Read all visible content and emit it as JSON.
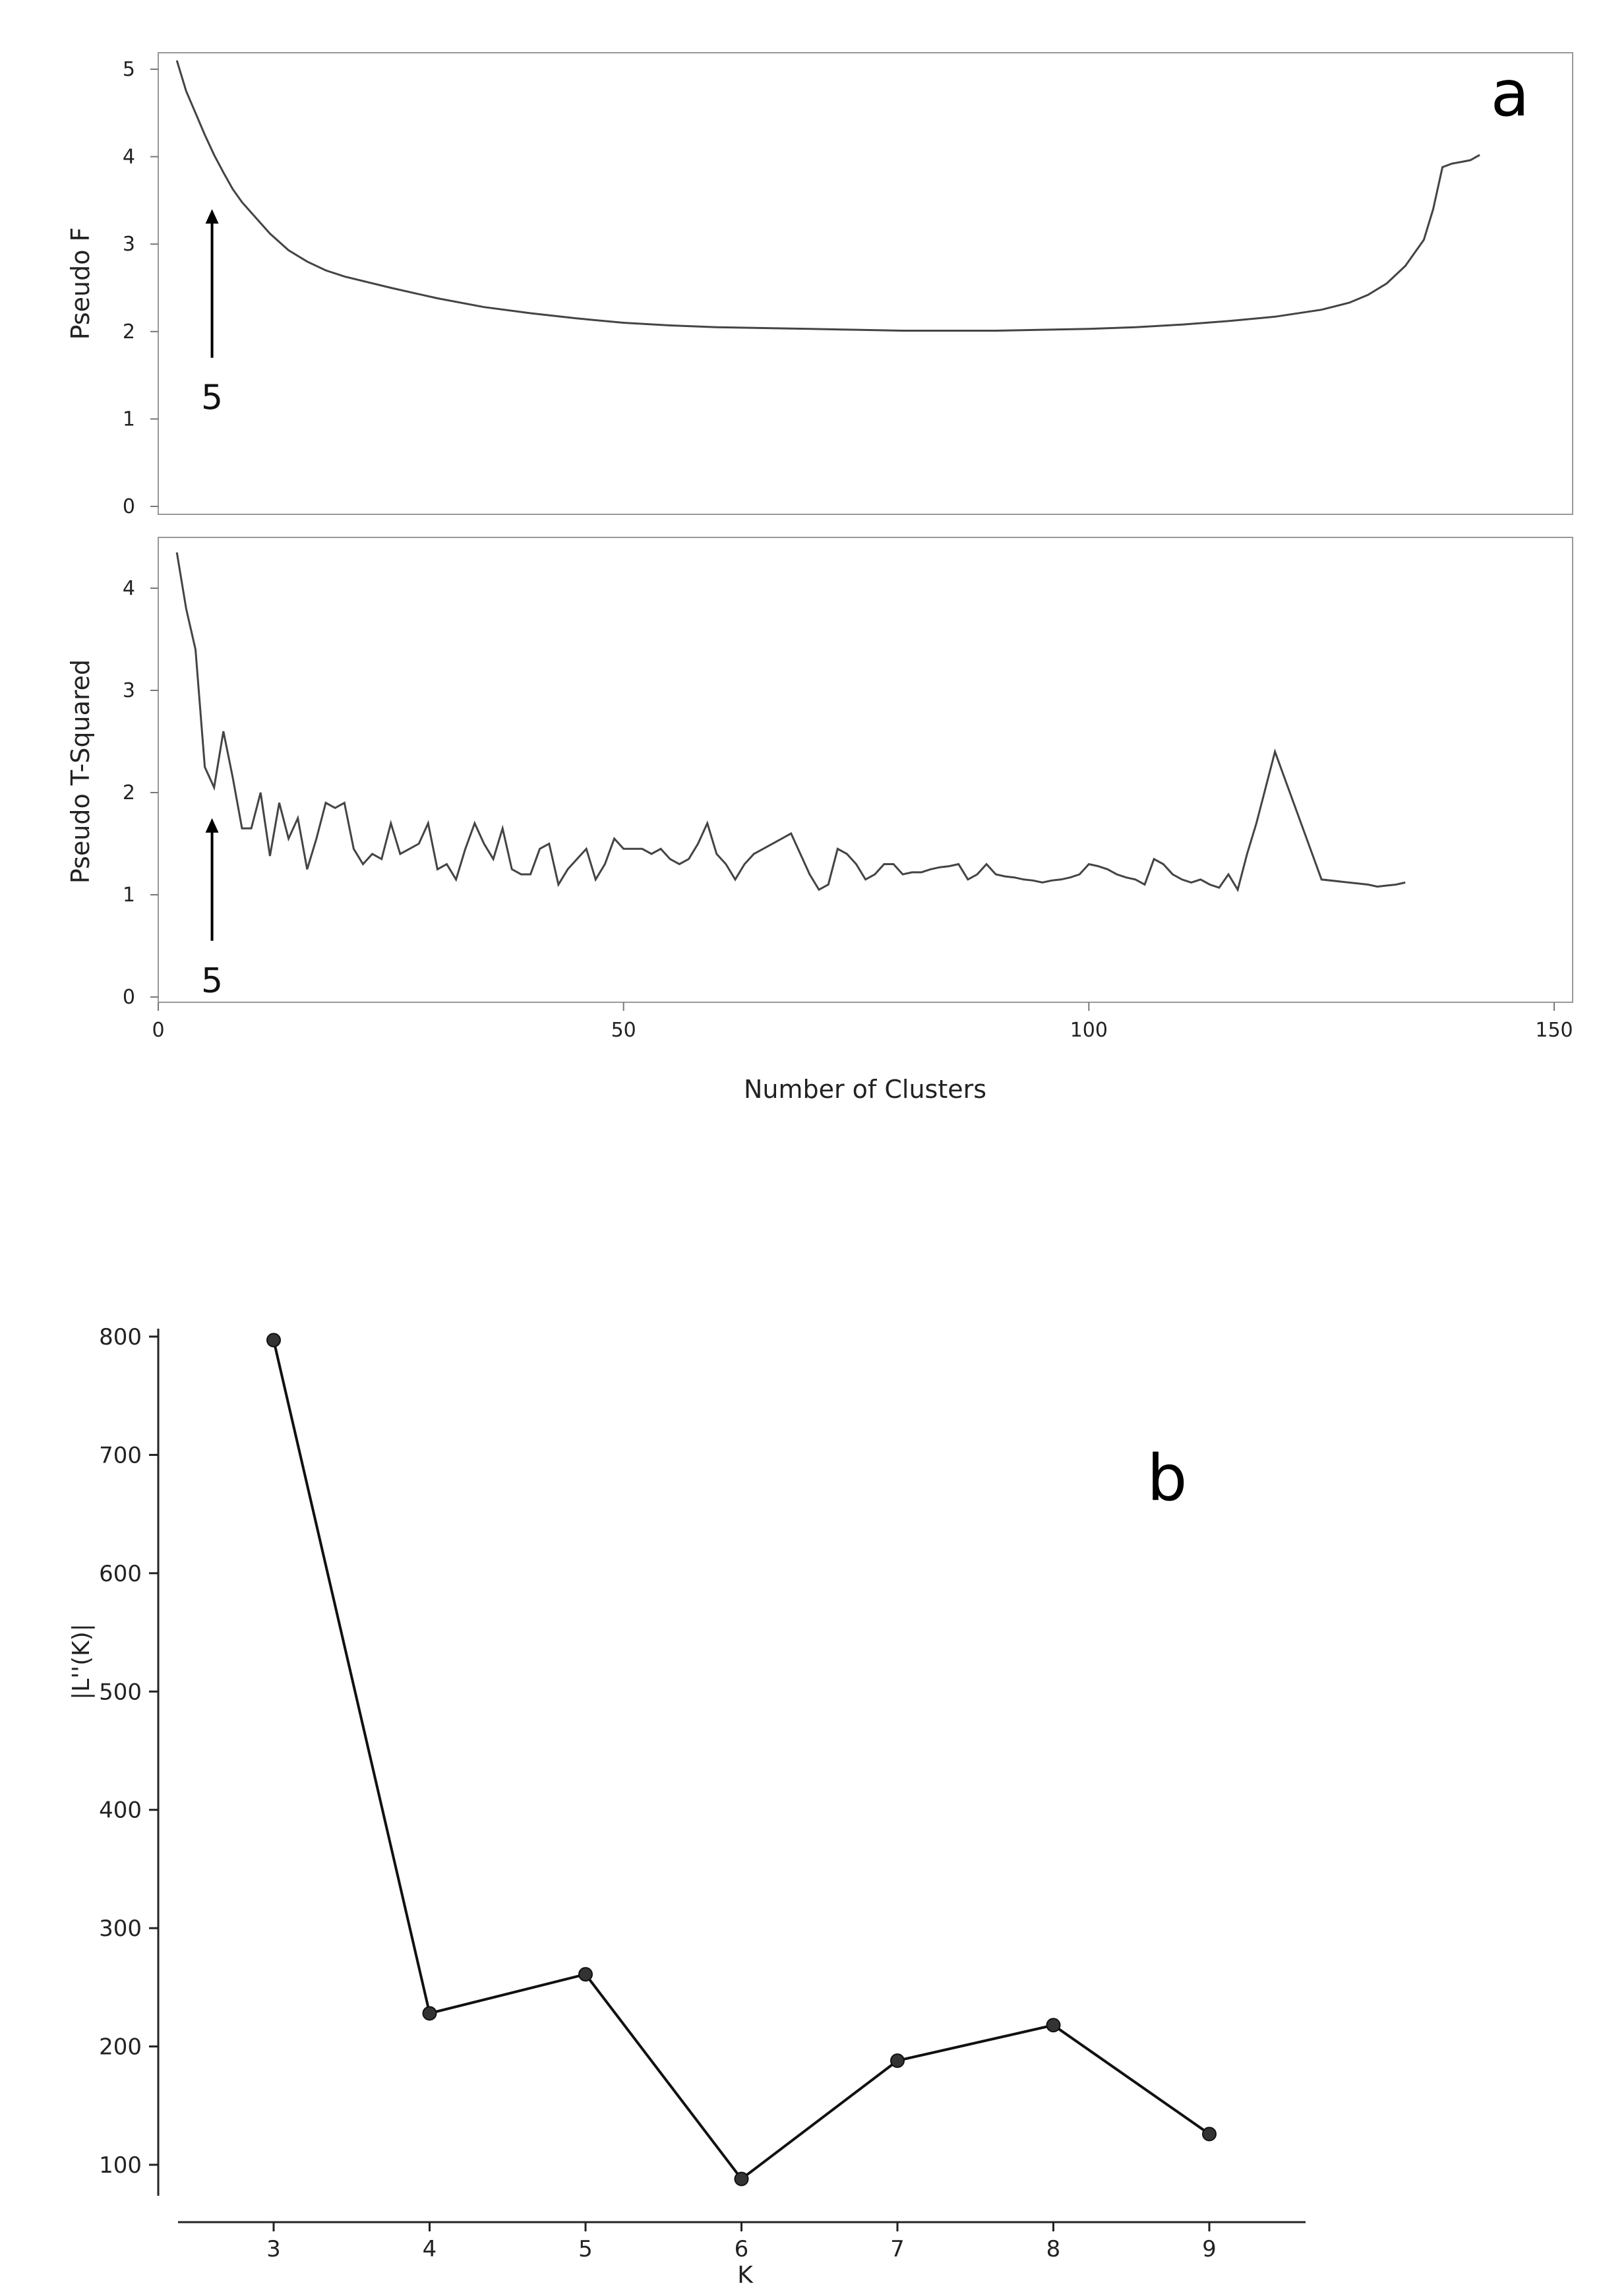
{
  "chart_data": [
    {
      "panel": "a",
      "type": "line",
      "ylabel": "Pseudo F",
      "ylim": [
        0,
        5.2
      ],
      "yticks": [
        "0",
        "1",
        "2",
        "3",
        "4",
        "5"
      ],
      "xlim": [
        0,
        150
      ],
      "grid": false,
      "annotation": {
        "text": "5",
        "x": 5,
        "arrow_from_y": 1.7,
        "arrow_to_y": 3.4
      },
      "series": [
        {
          "x": [
            2,
            3,
            4,
            5,
            6,
            7,
            8,
            9,
            10,
            12,
            14,
            16,
            18,
            20,
            25,
            30,
            35,
            40,
            45,
            50,
            55,
            60,
            65,
            70,
            75,
            80,
            85,
            90,
            95,
            100,
            105,
            110,
            115,
            120,
            125,
            128,
            130,
            132,
            134,
            136,
            137,
            138,
            139,
            140,
            141,
            142
          ],
          "y": [
            5.1,
            4.75,
            4.5,
            4.25,
            4.02,
            3.82,
            3.63,
            3.48,
            3.36,
            3.12,
            2.93,
            2.8,
            2.7,
            2.63,
            2.5,
            2.38,
            2.28,
            2.21,
            2.15,
            2.1,
            2.07,
            2.05,
            2.04,
            2.03,
            2.02,
            2.01,
            2.01,
            2.01,
            2.02,
            2.03,
            2.05,
            2.08,
            2.12,
            2.17,
            2.25,
            2.33,
            2.42,
            2.55,
            2.75,
            3.05,
            3.4,
            3.88,
            3.92,
            3.94,
            3.96,
            4.02
          ]
        }
      ]
    },
    {
      "panel": "a",
      "type": "line",
      "ylabel": "Pseudo T-Squared",
      "xlabel": "Number of Clusters",
      "ylim": [
        0,
        4.4
      ],
      "yticks": [
        "0",
        "1",
        "2",
        "3",
        "4"
      ],
      "xlim": [
        0,
        150
      ],
      "xticks": [
        "0",
        "50",
        "100",
        "150"
      ],
      "grid": false,
      "annotation": {
        "text": "5",
        "x": 5,
        "arrow_from_y": 0.55,
        "arrow_to_y": 1.75
      },
      "series": [
        {
          "x": [
            2,
            3,
            4,
            5,
            6,
            7,
            8,
            9,
            10,
            11,
            12,
            13,
            14,
            15,
            16,
            17,
            18,
            19,
            20,
            21,
            22,
            23,
            24,
            25,
            26,
            27,
            28,
            29,
            30,
            31,
            32,
            33,
            34,
            35,
            36,
            37,
            38,
            39,
            40,
            41,
            42,
            43,
            44,
            45,
            46,
            47,
            48,
            49,
            50,
            51,
            52,
            53,
            54,
            55,
            56,
            57,
            58,
            59,
            60,
            61,
            62,
            63,
            64,
            65,
            66,
            67,
            68,
            69,
            70,
            71,
            72,
            73,
            74,
            75,
            76,
            77,
            78,
            79,
            80,
            81,
            82,
            83,
            84,
            85,
            86,
            87,
            88,
            89,
            90,
            91,
            92,
            93,
            94,
            95,
            96,
            97,
            98,
            99,
            100,
            101,
            102,
            103,
            104,
            105,
            106,
            107,
            108,
            109,
            110,
            111,
            112,
            113,
            114,
            115,
            116,
            117,
            118,
            119,
            120,
            125,
            130,
            131,
            132,
            133,
            134
          ],
          "y": [
            4.35,
            3.8,
            3.4,
            2.25,
            2.05,
            2.6,
            2.15,
            1.65,
            1.65,
            2.0,
            1.38,
            1.9,
            1.55,
            1.75,
            1.25,
            1.55,
            1.9,
            1.85,
            1.9,
            1.45,
            1.3,
            1.4,
            1.35,
            1.7,
            1.4,
            1.45,
            1.5,
            1.7,
            1.25,
            1.3,
            1.15,
            1.45,
            1.7,
            1.5,
            1.35,
            1.65,
            1.25,
            1.2,
            1.2,
            1.45,
            1.5,
            1.1,
            1.25,
            1.35,
            1.45,
            1.15,
            1.3,
            1.55,
            1.45,
            1.45,
            1.45,
            1.4,
            1.45,
            1.35,
            1.3,
            1.35,
            1.5,
            1.7,
            1.4,
            1.3,
            1.15,
            1.3,
            1.4,
            1.45,
            1.5,
            1.55,
            1.6,
            1.4,
            1.2,
            1.05,
            1.1,
            1.45,
            1.4,
            1.3,
            1.15,
            1.2,
            1.3,
            1.3,
            1.2,
            1.22,
            1.22,
            1.25,
            1.27,
            1.28,
            1.3,
            1.15,
            1.2,
            1.3,
            1.2,
            1.18,
            1.17,
            1.15,
            1.14,
            1.12,
            1.14,
            1.15,
            1.17,
            1.2,
            1.3,
            1.28,
            1.25,
            1.2,
            1.17,
            1.15,
            1.1,
            1.35,
            1.3,
            1.2,
            1.15,
            1.12,
            1.15,
            1.1,
            1.07,
            1.2,
            1.05,
            1.4,
            1.7,
            2.05,
            2.4,
            1.15,
            1.1,
            1.08,
            1.09,
            1.1,
            1.12
          ]
        }
      ]
    },
    {
      "panel": "b",
      "type": "line",
      "ylabel": "|L''(K)|",
      "xlabel": "K",
      "categories": [
        "3",
        "4",
        "5",
        "6",
        "7",
        "8",
        "9"
      ],
      "values": [
        797,
        228,
        261,
        88,
        188,
        218,
        126
      ],
      "ylim": [
        0,
        870
      ],
      "yticks": [
        "100",
        "200",
        "300",
        "400",
        "500",
        "600",
        "700",
        "800"
      ],
      "grid": false
    }
  ],
  "labels": {
    "panel_a": "a",
    "panel_b": "b"
  }
}
